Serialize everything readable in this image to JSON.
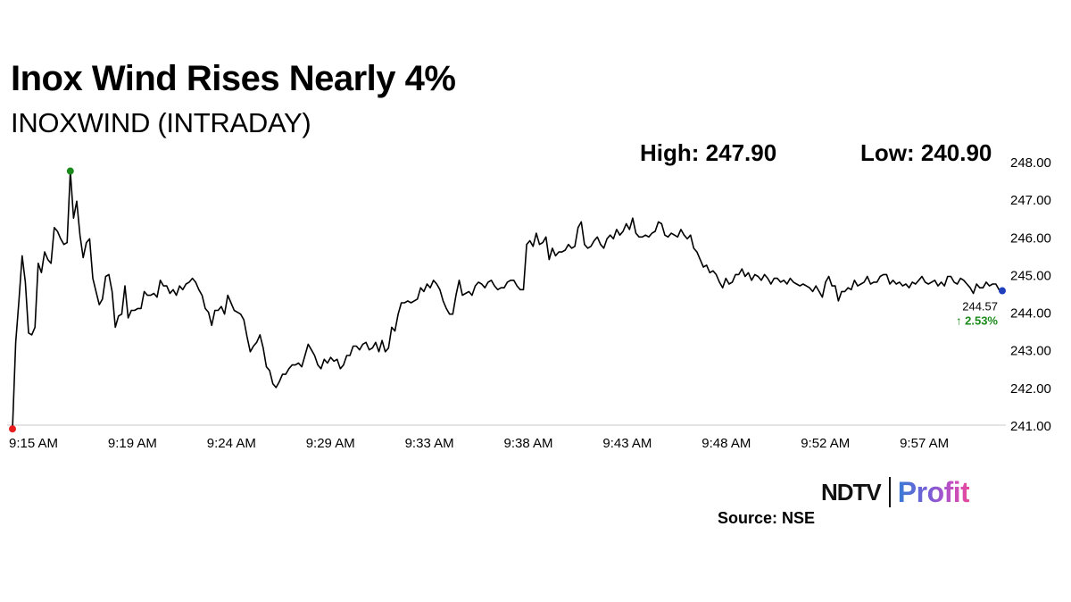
{
  "header": {
    "title": "Inox Wind Rises Nearly 4%",
    "subtitle": "INOXWIND (INTRADAY)",
    "high_label": "High: 247.90",
    "low_label": "Low: 240.90"
  },
  "last_value": {
    "price": "244.57",
    "change": "↑ 2.53%"
  },
  "footer": {
    "logo_left": "NDTV",
    "logo_right": "Profit",
    "source": "Source: NSE"
  },
  "colors": {
    "line": "#000000",
    "high_marker": "#1a8a1a",
    "low_marker": "#e81c1c",
    "last_marker": "#1f3fbf",
    "change": "#1a8a1a",
    "gridline": "#d9d9d9"
  },
  "chart_data": {
    "type": "line",
    "title": "INOXWIND (INTRADAY)",
    "x_ticks": [
      "9:15 AM",
      "9:19 AM",
      "9:24 AM",
      "9:29 AM",
      "9:33 AM",
      "9:38 AM",
      "9:43 AM",
      "9:48 AM",
      "9:52 AM",
      "9:57 AM"
    ],
    "y_ticks": [
      "241.00",
      "242.00",
      "243.00",
      "244.00",
      "245.00",
      "246.00",
      "247.00",
      "248.00"
    ],
    "ylim": [
      241.0,
      248.0
    ],
    "high": 247.9,
    "low": 240.9,
    "last": 244.57,
    "change_pct": 2.53,
    "series": [
      {
        "name": "INOXWIND",
        "values": [
          240.9,
          243.2,
          244.3,
          245.5,
          244.8,
          243.45,
          243.4,
          243.6,
          245.3,
          245.05,
          245.6,
          245.4,
          245.3,
          246.25,
          246.15,
          245.95,
          245.8,
          245.85,
          247.75,
          246.5,
          246.95,
          246.05,
          245.45,
          245.85,
          245.95,
          244.9,
          244.55,
          244.2,
          244.35,
          244.95,
          245.0,
          244.55,
          243.6,
          243.9,
          243.95,
          244.7,
          243.85,
          244.05,
          244.05,
          244.1,
          244.1,
          244.55,
          244.45,
          244.45,
          244.5,
          244.4,
          244.85,
          244.7,
          244.7,
          244.5,
          244.6,
          244.45,
          244.7,
          244.6,
          244.75,
          244.8,
          244.9,
          244.8,
          244.6,
          244.45,
          244.1,
          244.0,
          243.65,
          244.05,
          244.05,
          244.15,
          243.95,
          244.45,
          244.25,
          244.05,
          244.0,
          243.95,
          243.8,
          243.35,
          242.95,
          243.1,
          243.2,
          243.4,
          243.05,
          242.55,
          242.45,
          242.1,
          242.0,
          242.15,
          242.35,
          242.35,
          242.5,
          242.6,
          242.6,
          242.65,
          242.55,
          242.85,
          243.15,
          243.0,
          242.85,
          242.6,
          242.5,
          242.75,
          242.65,
          242.8,
          242.7,
          242.75,
          242.5,
          242.6,
          242.85,
          242.85,
          243.1,
          243.1,
          243.0,
          243.15,
          243.2,
          243.0,
          243.05,
          243.2,
          242.95,
          243.25,
          242.95,
          243.05,
          243.6,
          243.5,
          243.95,
          244.25,
          244.25,
          244.3,
          244.25,
          244.3,
          244.35,
          244.65,
          244.55,
          244.75,
          244.65,
          244.85,
          244.75,
          244.6,
          244.3,
          244.1,
          243.95,
          243.95,
          244.45,
          244.85,
          244.45,
          244.5,
          244.55,
          244.45,
          244.7,
          244.8,
          244.75,
          244.65,
          244.8,
          244.85,
          244.7,
          244.6,
          244.65,
          244.65,
          244.8,
          244.85,
          244.85,
          244.7,
          244.6,
          244.6,
          245.8,
          245.9,
          245.75,
          246.1,
          245.8,
          245.85,
          246.0,
          245.4,
          245.7,
          245.5,
          245.6,
          245.6,
          245.65,
          245.8,
          245.7,
          245.75,
          246.25,
          246.4,
          245.8,
          245.7,
          245.75,
          245.9,
          246.0,
          245.8,
          245.7,
          245.95,
          246.05,
          245.95,
          246.2,
          246.05,
          246.15,
          246.35,
          246.2,
          246.5,
          246.1,
          246.0,
          246.0,
          246.05,
          246.0,
          246.1,
          246.15,
          246.4,
          246.35,
          246.05,
          246.0,
          246.1,
          246.05,
          246.0,
          246.2,
          246.05,
          245.95,
          246.05,
          245.7,
          245.6,
          245.4,
          245.2,
          245.25,
          245.05,
          245.1,
          245.0,
          244.8,
          244.65,
          244.9,
          244.75,
          244.8,
          245.0,
          245.0,
          245.15,
          244.95,
          245.05,
          244.85,
          245.0,
          244.95,
          244.85,
          245.0,
          244.9,
          244.75,
          244.9,
          244.9,
          244.8,
          244.85,
          244.75,
          244.9,
          244.8,
          244.75,
          244.7,
          244.75,
          244.7,
          244.65,
          244.55,
          244.7,
          244.55,
          244.4,
          244.8,
          244.95,
          244.7,
          244.7,
          244.3,
          244.55,
          244.55,
          244.65,
          244.6,
          244.85,
          244.7,
          244.75,
          244.8,
          244.95,
          244.75,
          244.8,
          244.8,
          244.95,
          245.0,
          245.0,
          244.75,
          244.85,
          244.75,
          244.8,
          244.7,
          244.75,
          244.65,
          244.8,
          244.75,
          244.85,
          244.95,
          244.8,
          244.75,
          244.8,
          244.85,
          244.7,
          244.8,
          244.7,
          244.95,
          244.95,
          244.8,
          244.75,
          244.9,
          244.85,
          244.75,
          244.65,
          244.5,
          244.75,
          244.65,
          244.65,
          244.8,
          244.7,
          244.75,
          244.75,
          244.6,
          244.57
        ]
      }
    ]
  }
}
